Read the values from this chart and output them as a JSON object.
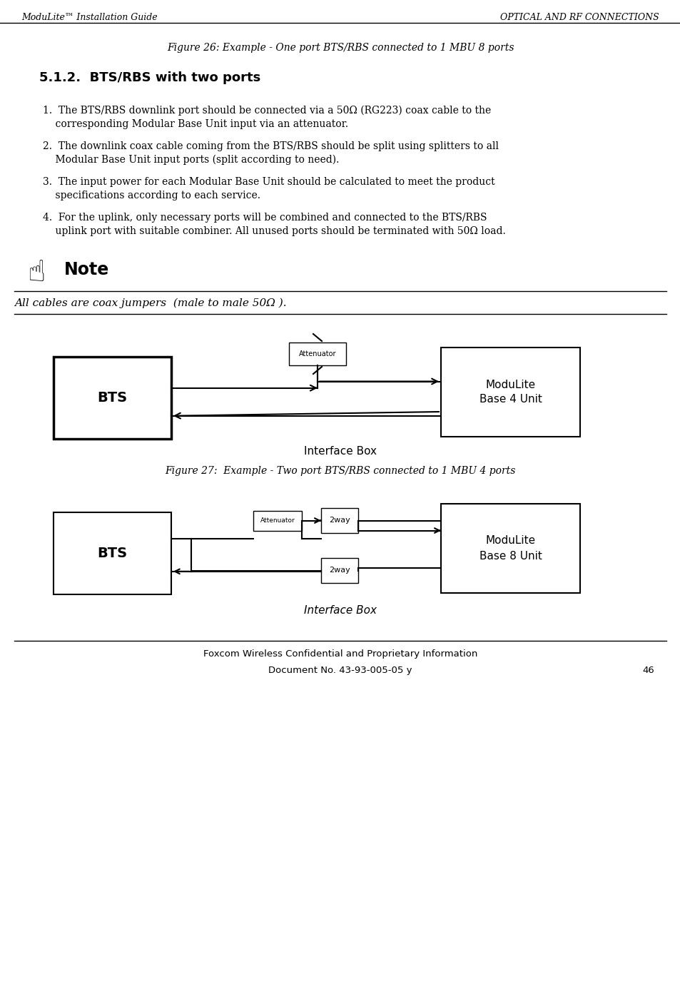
{
  "header_left": "ModuLite™ Installation Guide",
  "header_right": "OPTICAL AND RF CONNECTIONS",
  "figure26_caption": "Figure 26: Example - One port BTS/RBS connected to 1 MBU 8 ports",
  "section_title": "5.1.2.  BTS/RBS with two ports",
  "para1_l1": "1.  The BTS/RBS downlink port should be connected via a 50Ω (RG223) coax cable to the",
  "para1_l2": "    corresponding Modular Base Unit input via an attenuator.",
  "para2_l1": "2.  The downlink coax cable coming from the BTS/RBS should be split using splitters to all",
  "para2_l2": "    Modular Base Unit input ports (split according to need).",
  "para3_l1": "3.  The input power for each Modular Base Unit should be calculated to meet the product",
  "para3_l2": "    specifications according to each service.",
  "para4_l1": "4.  For the uplink, only necessary ports will be combined and connected to the BTS/RBS",
  "para4_l2": "    uplink port with suitable combiner. All unused ports should be terminated with 50Ω load.",
  "note_label": "Note",
  "note_text": "All cables are coax jumpers  (male to male 50Ω ).",
  "interface_box_label1": "Interface Box",
  "figure27_caption": "Figure 27:  Example - Two port BTS/RBS connected to 1 MBU 4 ports",
  "interface_box_label2": "Interface Box",
  "bts_label": "BTS",
  "mbu4_label": "ModuLite\nBase 4 Unit",
  "mbu8_label": "ModuLite\nBase 8 Unit",
  "att_label": "Attenuator",
  "tway_label": "2way",
  "footer_line1": "Foxcom Wireless Confidential and Proprietary Information",
  "footer_line2": "Document No. 43-93-005-05 y",
  "footer_page": "46",
  "bg_color": "#ffffff",
  "text_color": "#000000"
}
